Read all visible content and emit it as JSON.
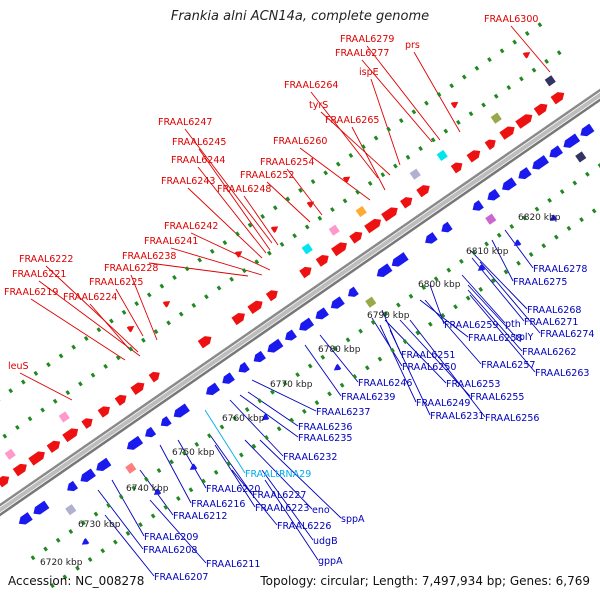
{
  "title": "Frankia alni ACN14a, complete genome",
  "footer": {
    "accession": "Accession: NC_008278",
    "stats": "Topology: circular; Length: 7,497,934 bp; Genes: 6,769"
  },
  "colors": {
    "upper_label": "#dd0000",
    "lower_label": "#0000bb",
    "rna_label": "#00aaee",
    "forward_gene": "#ee1111",
    "reverse_gene": "#1a1aee",
    "dots": "#228822"
  },
  "scale_ticks": [
    "6720 kbp",
    "6730 kbp",
    "6740 kbp",
    "6750 kbp",
    "6760 kbp",
    "6770 kbp",
    "6780 kbp",
    "6790 kbp",
    "6800 kbp",
    "6810 kbp",
    "6820 kbp"
  ],
  "upper_labels": [
    "FRAAL6300",
    "FRAAL6279",
    "prs",
    "FRAAL6277",
    "ispE",
    "FRAAL6264",
    "tyrS",
    "FRAAL6265",
    "FRAAL6260",
    "FRAAL6247",
    "FRAAL6254",
    "FRAAL6245",
    "FRAAL6244",
    "FRAAL6252",
    "FRAAL6243",
    "FRAAL6248",
    "FRAAL6242",
    "FRAAL6241",
    "FRAAL6238",
    "FRAAL6222",
    "FRAAL6228",
    "FRAAL6221",
    "FRAAL6225",
    "FRAAL6219",
    "FRAAL6224",
    "leuS"
  ],
  "lower_labels": [
    "FRAAL6278",
    "FRAAL6275",
    "FRAAL6268",
    "FRAAL6271",
    "FRAAL6274",
    "pth",
    "FRAAL6259",
    "rplY",
    "FRAAL6258",
    "FRAAL6262",
    "FRAAL6251",
    "FRAAL6250",
    "FRAAL6257",
    "FRAAL6263",
    "FRAAL6246",
    "FRAAL6253",
    "FRAAL6239",
    "FRAAL6255",
    "FRAAL6249",
    "FRAAL6237",
    "FRAAL6231",
    "FRAAL6256",
    "FRAAL6236",
    "FRAAL6235",
    "FRAAL6232",
    "FRAALtRNA29",
    "FRAAL6220",
    "FRAAL6227",
    "FRAAL6216",
    "eno",
    "sppA",
    "FRAAL6223",
    "FRAAL6212",
    "FRAAL6226",
    "udgB",
    "FRAAL6209",
    "FRAAL6208",
    "gppA",
    "FRAAL6211",
    "FRAAL6207"
  ]
}
